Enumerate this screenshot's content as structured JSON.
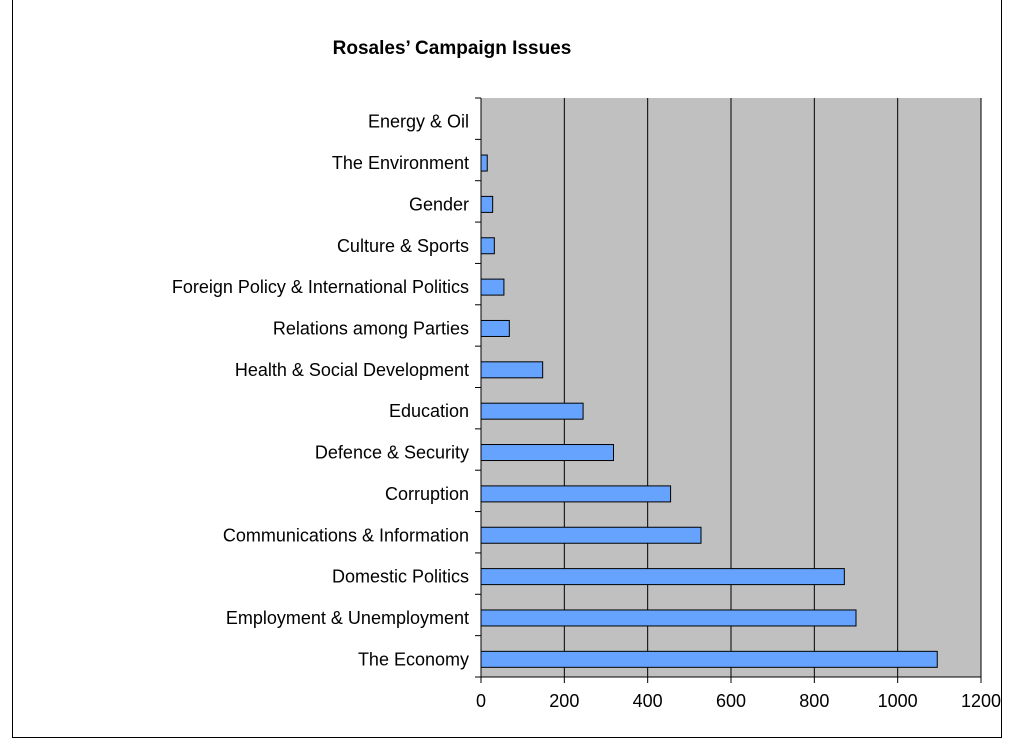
{
  "chart_data": {
    "type": "bar",
    "orientation": "horizontal",
    "title": "Rosales’ Campaign Issues",
    "xlabel": "",
    "ylabel": "",
    "categories": [
      "Energy & Oil",
      "The Environment",
      "Gender",
      "Culture & Sports",
      "Foreign Policy & International Politics",
      "Relations among Parties",
      "Health & Social Development",
      "Education",
      "Defence & Security",
      "Corruption",
      "Communications & Information",
      "Domestic Politics",
      "Employment & Unemployment",
      "The Economy"
    ],
    "values": [
      0,
      15,
      28,
      32,
      55,
      68,
      148,
      245,
      318,
      455,
      528,
      872,
      900,
      1095
    ],
    "xlim": [
      0,
      1200
    ],
    "xticks": [
      "0",
      "200",
      "400",
      "600",
      "800",
      "1000",
      "1200"
    ],
    "grid": "vertical",
    "legend": "none",
    "colors": {
      "bar": "#66a3ff",
      "plot_background": "#c0c0c0",
      "gridline": "#000000"
    }
  }
}
